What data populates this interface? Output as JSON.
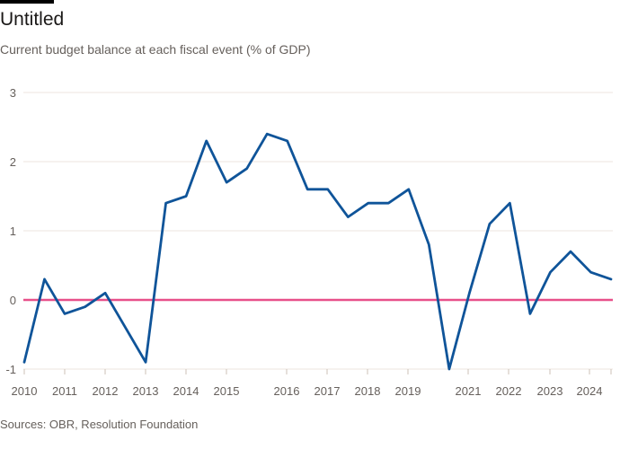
{
  "title": "Untitled",
  "subtitle": "Current budget balance at each fiscal event (% of GDP)",
  "source": "Sources: OBR, Resolution Foundation",
  "colors": {
    "series": "#0f5499",
    "reference_line": "#e8508a",
    "grid": "#ece6df"
  },
  "chart_data": {
    "type": "line",
    "title": "",
    "xlabel": "",
    "ylabel": "",
    "ylim": [
      -1,
      3
    ],
    "grid": true,
    "y_ticks": [
      3,
      2,
      1,
      0,
      -1
    ],
    "y_tick_labels": [
      "3",
      "2",
      "1",
      "0",
      "-1"
    ],
    "x_tick_labels": [
      "2010",
      "2011",
      "2012",
      "2013",
      "2014",
      "2015",
      "2016",
      "2017",
      "2018",
      "2019",
      "2021",
      "2022",
      "2023",
      "2024"
    ],
    "reference_line": {
      "y": 0
    },
    "series": [
      {
        "values": [
          -0.9,
          0.3,
          -0.2,
          -0.1,
          0.1,
          -0.4,
          -0.9,
          1.4,
          1.5,
          2.3,
          1.7,
          1.9,
          2.4,
          2.3,
          1.6,
          1.6,
          1.2,
          1.4,
          1.4,
          1.6,
          0.8,
          -1.0,
          0.1,
          1.1,
          1.4,
          -0.2,
          0.4,
          0.7,
          0.4,
          0.3
        ]
      }
    ]
  }
}
